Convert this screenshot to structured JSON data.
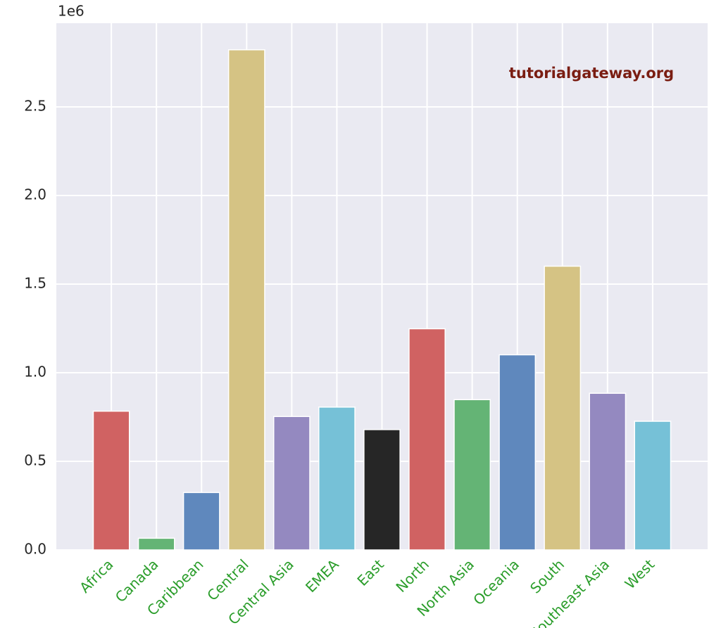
{
  "chart_data": {
    "type": "bar",
    "offset_label": "1e6",
    "watermark": "tutorialgateway.org",
    "categories": [
      "Africa",
      "Canada",
      "Caribbean",
      "Central",
      "Central Asia",
      "EMEA",
      "East",
      "North",
      "North Asia",
      "Oceania",
      "South",
      "Southeast Asia",
      "West"
    ],
    "values": [
      0.783,
      0.066,
      0.324,
      2.822,
      0.753,
      0.806,
      0.679,
      1.248,
      0.848,
      1.101,
      1.601,
      0.884,
      0.726
    ],
    "colors": [
      "#d06262",
      "#64b475",
      "#5f88bd",
      "#d5c384",
      "#9489c0",
      "#76c1d7",
      "#262626",
      "#d06262",
      "#64b475",
      "#5f88bd",
      "#d5c384",
      "#9489c0",
      "#76c1d7"
    ],
    "tick_label_color": "#2a9d2a",
    "ylim": [
      0,
      2.972
    ],
    "yticks": [
      {
        "value": 0,
        "label": "0.0"
      },
      {
        "value": 0.5,
        "label": "0.5"
      },
      {
        "value": 1,
        "label": "1.0"
      },
      {
        "value": 1.5,
        "label": "1.5"
      },
      {
        "value": 2,
        "label": "2.0"
      },
      {
        "value": 2.5,
        "label": "2.5"
      }
    ],
    "grid": true
  }
}
